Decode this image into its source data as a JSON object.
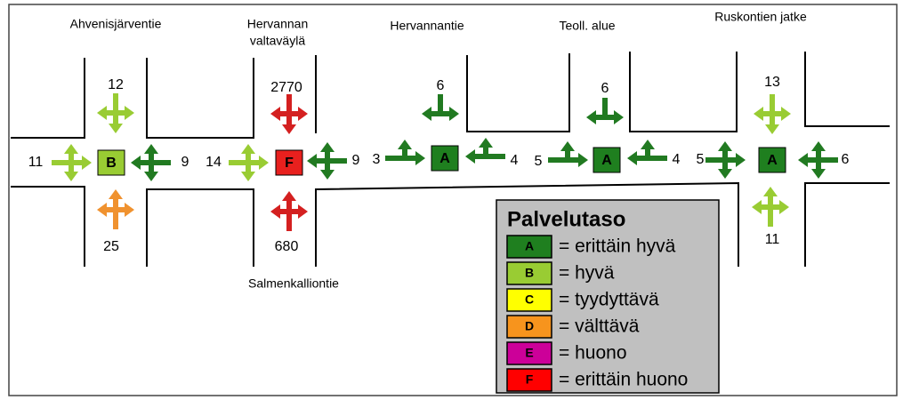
{
  "intersections": [
    {
      "name": [
        "Ahvenisjärventie"
      ],
      "los": "B",
      "color": "#99cc33",
      "approaches": [
        {
          "value": 12,
          "color": "#99cc33"
        },
        {
          "value": 25,
          "color": "#f0922f"
        },
        {
          "value": 11,
          "color": "#99cc33"
        },
        {
          "value": 9,
          "color": "#217a21"
        }
      ]
    },
    {
      "name": [
        "Hervannan",
        "valtaväylä"
      ],
      "cross_street": "Salmenkalliontie",
      "los": "F",
      "color": "#e8201e",
      "approaches": [
        {
          "value": 2770,
          "color": "#d42020"
        },
        {
          "value": 680,
          "color": "#d42020"
        },
        {
          "value": 14,
          "color": "#99cc33"
        },
        {
          "value": 9,
          "color": "#217a21"
        }
      ]
    },
    {
      "name": [
        "Hervannantie"
      ],
      "los": "A",
      "color": "#1f7f1f",
      "approaches": [
        {
          "value": 6,
          "color": "#217a21"
        },
        {
          "value": 3,
          "color": "#217a21"
        },
        {
          "value": 4,
          "color": "#217a21"
        }
      ]
    },
    {
      "name": [
        "Teoll. alue"
      ],
      "los": "A",
      "color": "#1f7f1f",
      "approaches": [
        {
          "value": 6,
          "color": "#217a21"
        },
        {
          "value": 5,
          "color": "#217a21"
        },
        {
          "value": 4,
          "color": "#217a21"
        }
      ]
    },
    {
      "name": [
        "Ruskontien jatke"
      ],
      "los": "A",
      "color": "#1f7f1f",
      "approaches": [
        {
          "value": 13,
          "color": "#99cc33"
        },
        {
          "value": 11,
          "color": "#99cc33"
        },
        {
          "value": 5,
          "color": "#217a21"
        },
        {
          "value": 6,
          "color": "#217a21"
        }
      ]
    }
  ],
  "legend": {
    "title": "Palvelutaso",
    "items": [
      {
        "code": "A",
        "label": "= erittäin hyvä",
        "color": "#1f7f1f"
      },
      {
        "code": "B",
        "label": "= hyvä",
        "color": "#99cc33"
      },
      {
        "code": "C",
        "label": "= tyydyttävä",
        "color": "#ffff00"
      },
      {
        "code": "D",
        "label": "= välttävä",
        "color": "#f7941d"
      },
      {
        "code": "E",
        "label": "= huono",
        "color": "#cc0099"
      },
      {
        "code": "F",
        "label": "= erittäin huono",
        "color": "#ff0000"
      }
    ]
  }
}
